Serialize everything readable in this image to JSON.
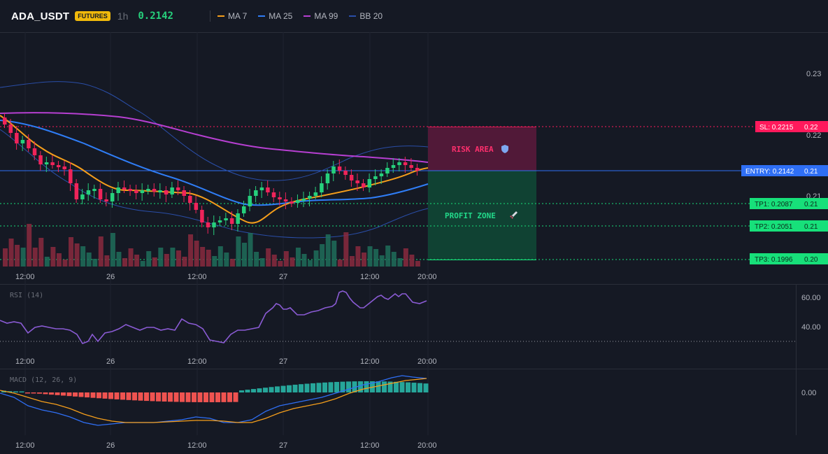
{
  "header": {
    "symbol": "ADA_USDT",
    "badge": "FUTURES",
    "timeframe": "1h",
    "price": "0.2142",
    "indicators": [
      {
        "label": "MA 7",
        "color": "#f59e1b"
      },
      {
        "label": "MA 25",
        "color": "#2f7df6"
      },
      {
        "label": "MA 99",
        "color": "#b63fd1"
      },
      {
        "label": "BB 20",
        "color": "#2a4ea8"
      }
    ]
  },
  "price_axis": [
    "0.23",
    "0.22",
    "0.21"
  ],
  "time_axis": [
    "12:00",
    "26",
    "12:00",
    "27",
    "12:00",
    "20:00"
  ],
  "levels": {
    "sl": {
      "tag": "SL: 0.2215",
      "axis": "0.22",
      "value": 0.2215,
      "color": "#ff1a5c"
    },
    "entry": {
      "tag": "ENTRY: 0.2142",
      "axis": "0.21",
      "value": 0.2142,
      "color": "#2f6ff5"
    },
    "tp1": {
      "tag": "TP1: 0.2087",
      "axis": "0.21",
      "value": 0.2087,
      "color": "#17e07a"
    },
    "tp2": {
      "tag": "TP2: 0.2051",
      "axis": "0.21",
      "value": 0.2051,
      "color": "#17e07a"
    },
    "tp3": {
      "tag": "TP3: 0.1996",
      "axis": "0.20",
      "value": 0.1996,
      "color": "#17e07a"
    }
  },
  "zones": {
    "risk": {
      "label": "RISK AREA",
      "icon": "shield-icon"
    },
    "profit": {
      "label": "PROFIT ZONE",
      "icon": "rocket-icon"
    }
  },
  "rsi": {
    "label": "RSI (14)",
    "axis": [
      "60.00",
      "40.00"
    ]
  },
  "macd": {
    "label": "MACD (12, 26, 9)",
    "axis": [
      "0.00"
    ]
  },
  "colors": {
    "bg": "#151924",
    "up": "#26d07c",
    "down": "#f0245a",
    "rsi_line": "#8a5bd4",
    "macd_line": "#2f6ff5",
    "signal_line": "#f59e1b"
  }
}
